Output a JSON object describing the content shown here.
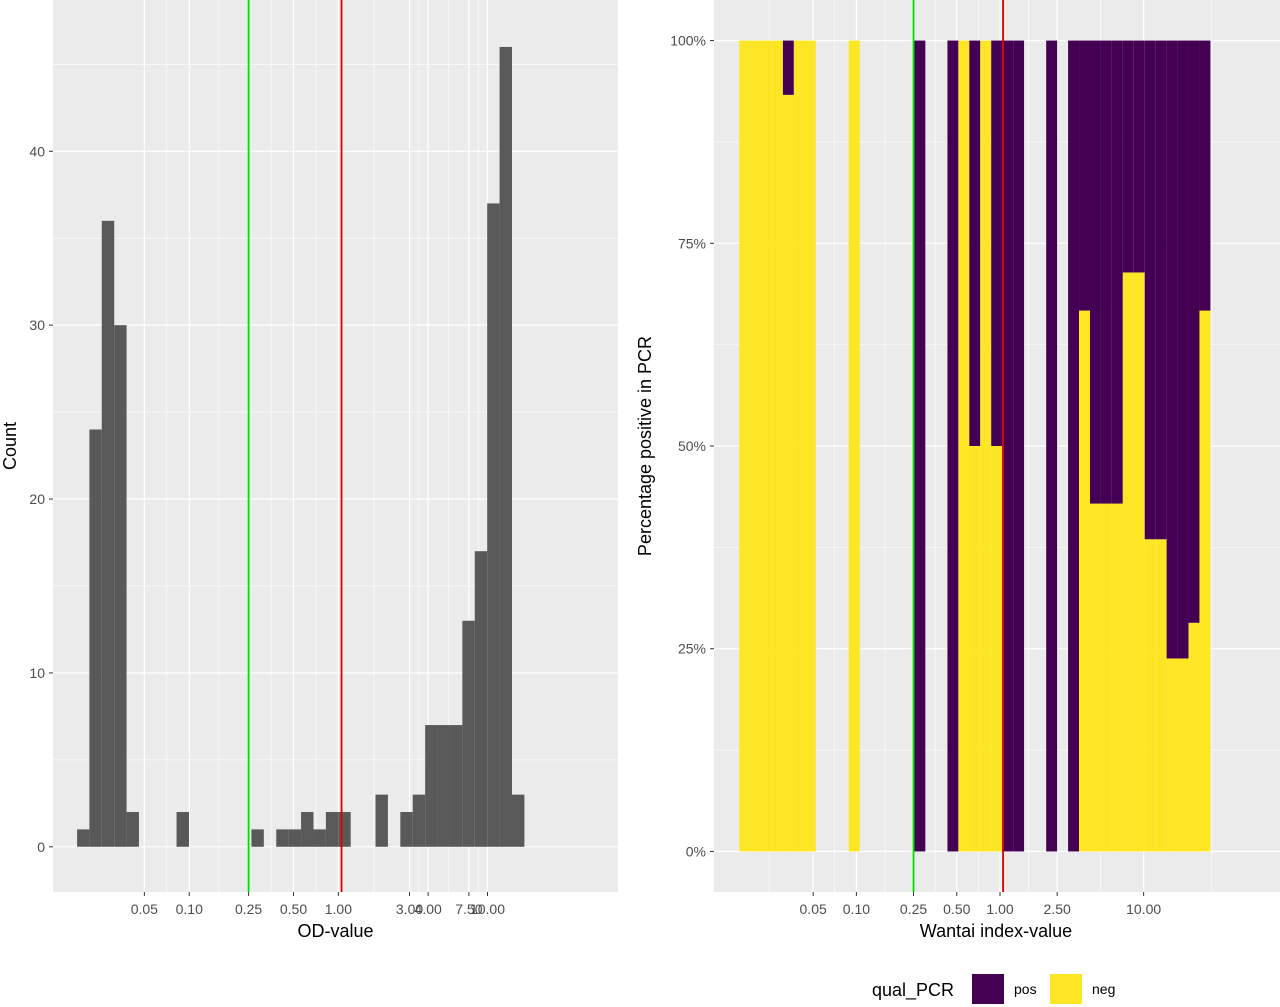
{
  "chart_data": [
    {
      "type": "bar",
      "subtype": "histogram",
      "xlabel": "OD-value",
      "ylabel": "Count",
      "x_scale": "log10",
      "x_ticks": [
        "0.05",
        "0.10",
        "0.25",
        "0.50",
        "1.00",
        "3.00",
        "4.00",
        "7.50",
        "10.00"
      ],
      "y_ticks": [
        "0",
        "10",
        "20",
        "30",
        "40"
      ],
      "ylim": [
        -2.6,
        48.7
      ],
      "xlim": [
        0.0122,
        75
      ],
      "bins": [
        {
          "x0": 0.0177,
          "x1": 0.0214,
          "count": 1
        },
        {
          "x0": 0.0214,
          "x1": 0.0259,
          "count": 24
        },
        {
          "x0": 0.0259,
          "x1": 0.0314,
          "count": 36
        },
        {
          "x0": 0.0314,
          "x1": 0.038,
          "count": 30
        },
        {
          "x0": 0.038,
          "x1": 0.046,
          "count": 2
        },
        {
          "x0": 0.0822,
          "x1": 0.0996,
          "count": 2
        },
        {
          "x0": 0.2612,
          "x1": 0.3163,
          "count": 1
        },
        {
          "x0": 0.3832,
          "x1": 0.4641,
          "count": 1
        },
        {
          "x0": 0.4641,
          "x1": 0.5621,
          "count": 1
        },
        {
          "x0": 0.5621,
          "x1": 0.6808,
          "count": 2
        },
        {
          "x0": 0.6808,
          "x1": 0.8245,
          "count": 1
        },
        {
          "x0": 0.8245,
          "x1": 0.9986,
          "count": 2
        },
        {
          "x0": 0.9986,
          "x1": 1.2095,
          "count": 2
        },
        {
          "x0": 1.7743,
          "x1": 2.1489,
          "count": 3
        },
        {
          "x0": 2.6027,
          "x1": 3.1522,
          "count": 2
        },
        {
          "x0": 3.1522,
          "x1": 3.8178,
          "count": 3
        },
        {
          "x0": 3.8178,
          "x1": 4.624,
          "count": 7
        },
        {
          "x0": 4.624,
          "x1": 5.6003,
          "count": 7
        },
        {
          "x0": 5.6003,
          "x1": 6.7828,
          "count": 7
        },
        {
          "x0": 6.7828,
          "x1": 8.215,
          "count": 13
        },
        {
          "x0": 8.215,
          "x1": 9.9496,
          "count": 17
        },
        {
          "x0": 9.9496,
          "x1": 12.0504,
          "count": 37
        },
        {
          "x0": 12.0504,
          "x1": 14.5948,
          "count": 46
        },
        {
          "x0": 14.5948,
          "x1": 17.6765,
          "count": 3
        }
      ],
      "reference_lines": [
        {
          "x": 0.25,
          "color": "#00e000"
        },
        {
          "x": 1.05,
          "color": "#e00000"
        }
      ],
      "colors": {
        "bar": "#595959",
        "panel": "#ebebeb",
        "grid": "#ffffff"
      }
    },
    {
      "type": "bar",
      "subtype": "filled-histogram",
      "xlabel": "Wantai index-value",
      "ylabel": "Percentage positive in PCR",
      "x_scale": "log10",
      "x_ticks": [
        "0.05",
        "0.10",
        "0.25",
        "0.50",
        "1.00",
        "2.50",
        "10.00"
      ],
      "y_ticks": [
        "0%",
        "25%",
        "50%",
        "75%",
        "100%"
      ],
      "ylim": [
        -0.05,
        1.05
      ],
      "xlim": [
        0.0102,
        89
      ],
      "legend": {
        "title": "qual_PCR",
        "position": "bottom",
        "entries": [
          {
            "label": "pos",
            "color": "#440154"
          },
          {
            "label": "neg",
            "color": "#fde725"
          }
        ]
      },
      "bins": [
        {
          "x0": 0.0153,
          "x1": 0.0182,
          "pos_fraction": 0
        },
        {
          "x0": 0.0182,
          "x1": 0.0217,
          "pos_fraction": 0
        },
        {
          "x0": 0.0217,
          "x1": 0.0258,
          "pos_fraction": 0
        },
        {
          "x0": 0.0258,
          "x1": 0.0308,
          "pos_fraction": 0
        },
        {
          "x0": 0.0308,
          "x1": 0.0367,
          "pos_fraction": 0.067
        },
        {
          "x0": 0.0367,
          "x1": 0.0438,
          "pos_fraction": 0
        },
        {
          "x0": 0.0438,
          "x1": 0.0522,
          "pos_fraction": 0
        },
        {
          "x0": 0.0885,
          "x1": 0.1055,
          "pos_fraction": 0
        },
        {
          "x0": 0.2534,
          "x1": 0.302,
          "pos_fraction": 1
        },
        {
          "x0": 0.4305,
          "x1": 0.513,
          "pos_fraction": 1
        },
        {
          "x0": 0.513,
          "x1": 0.6114,
          "pos_fraction": 0
        },
        {
          "x0": 0.6114,
          "x1": 0.7287,
          "pos_fraction": 0.5
        },
        {
          "x0": 0.7287,
          "x1": 0.8685,
          "pos_fraction": 0
        },
        {
          "x0": 0.8685,
          "x1": 1.0351,
          "pos_fraction": 0.5
        },
        {
          "x0": 1.0351,
          "x1": 1.2337,
          "pos_fraction": 1
        },
        {
          "x0": 1.2337,
          "x1": 1.4704,
          "pos_fraction": 1
        },
        {
          "x0": 2.0966,
          "x1": 2.4989,
          "pos_fraction": 1
        },
        {
          "x0": 2.9783,
          "x1": 3.5497,
          "pos_fraction": 1
        },
        {
          "x0": 3.5497,
          "x1": 4.2308,
          "pos_fraction": 0.333
        },
        {
          "x0": 4.2308,
          "x1": 5.0425,
          "pos_fraction": 0.571
        },
        {
          "x0": 5.0425,
          "x1": 6.01,
          "pos_fraction": 0.571
        },
        {
          "x0": 6.01,
          "x1": 7.1631,
          "pos_fraction": 0.571
        },
        {
          "x0": 7.1631,
          "x1": 8.5374,
          "pos_fraction": 0.286
        },
        {
          "x0": 8.5374,
          "x1": 10.1754,
          "pos_fraction": 0.286
        },
        {
          "x0": 10.1754,
          "x1": 12.1277,
          "pos_fraction": 0.615
        },
        {
          "x0": 12.1277,
          "x1": 14.4545,
          "pos_fraction": 0.615
        },
        {
          "x0": 14.4545,
          "x1": 17.2277,
          "pos_fraction": 0.762
        },
        {
          "x0": 17.2277,
          "x1": 20.533,
          "pos_fraction": 0.762
        },
        {
          "x0": 20.533,
          "x1": 24.4725,
          "pos_fraction": 0.718
        },
        {
          "x0": 24.4725,
          "x1": 29.1679,
          "pos_fraction": 0.333
        }
      ],
      "reference_lines": [
        {
          "x": 0.25,
          "color": "#00e000"
        },
        {
          "x": 1.05,
          "color": "#e00000"
        }
      ],
      "colors": {
        "panel": "#ebebeb",
        "grid": "#ffffff"
      }
    }
  ]
}
